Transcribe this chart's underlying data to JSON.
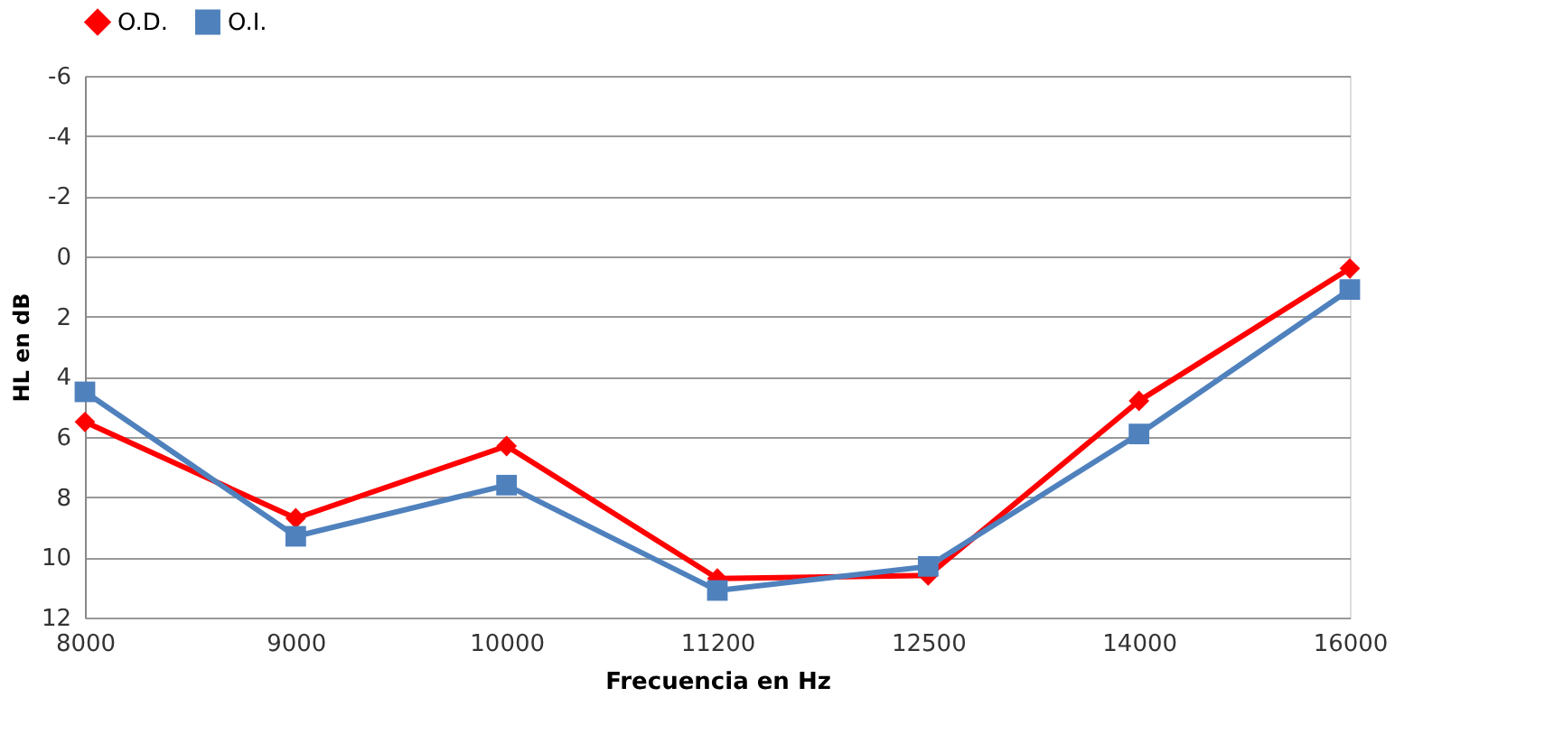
{
  "chart_data": {
    "type": "line",
    "xlabel": "Frecuencia en  Hz",
    "ylabel": "HL en dB",
    "categories": [
      "8000",
      "9000",
      "10000",
      "11200",
      "12500",
      "14000",
      "16000"
    ],
    "series": [
      {
        "name": "O.D.",
        "color": "#ff0000",
        "marker": "diamond",
        "values": [
          5.5,
          8.7,
          6.3,
          10.7,
          10.6,
          4.8,
          0.4
        ]
      },
      {
        "name": "O.I.",
        "color": "#4f81bd",
        "marker": "square",
        "values": [
          4.5,
          9.3,
          7.6,
          11.1,
          10.3,
          5.9,
          1.1
        ]
      }
    ],
    "ylim": [
      12,
      -6
    ],
    "yticks": [
      -6,
      -4,
      -2,
      0,
      2,
      4,
      6,
      8,
      10,
      12
    ],
    "grid": "y",
    "legend": "top"
  }
}
